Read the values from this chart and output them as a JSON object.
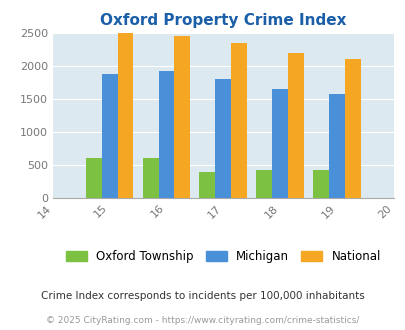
{
  "title": "Oxford Property Crime Index",
  "years": [
    2015,
    2016,
    2017,
    2018,
    2019
  ],
  "oxford": [
    600,
    600,
    400,
    430,
    430
  ],
  "michigan": [
    1880,
    1920,
    1800,
    1650,
    1580
  ],
  "national": [
    2500,
    2450,
    2350,
    2200,
    2100
  ],
  "oxford_color": "#7dc142",
  "michigan_color": "#4a90d9",
  "national_color": "#f5a623",
  "bg_color": "#dce9f0",
  "title_color": "#1a5fa8",
  "xlim": [
    2014,
    2020
  ],
  "ylim": [
    0,
    2500
  ],
  "yticks": [
    0,
    500,
    1000,
    1500,
    2000,
    2500
  ],
  "bar_width": 0.28,
  "legend_labels": [
    "Oxford Township",
    "Michigan",
    "National"
  ],
  "footnote1": "Crime Index corresponds to incidents per 100,000 inhabitants",
  "footnote2": "© 2025 CityRating.com - https://www.cityrating.com/crime-statistics/",
  "fig_bg": "#ffffff",
  "xtick_labels": [
    "14",
    "15",
    "16",
    "17",
    "18",
    "19",
    "20"
  ],
  "xtick_positions": [
    2014,
    2015,
    2016,
    2017,
    2018,
    2019,
    2020
  ]
}
